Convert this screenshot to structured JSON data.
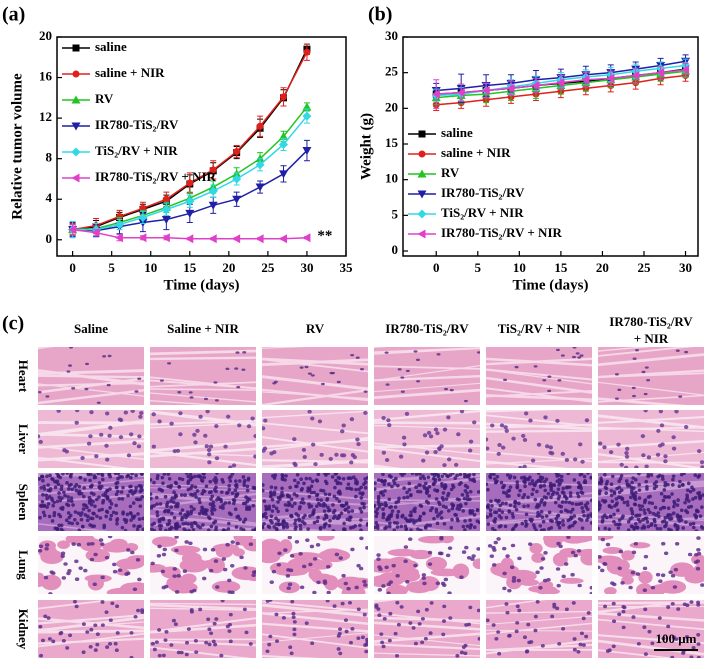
{
  "chart_data": [
    {
      "type": "line",
      "label": "(a)",
      "xlabel": "Time (days)",
      "ylabel": "Relative tumor volume",
      "x": [
        0,
        3,
        6,
        9,
        12,
        15,
        18,
        21,
        24,
        27,
        30
      ],
      "xlim": [
        -2,
        35
      ],
      "xticks": [
        0,
        5,
        10,
        15,
        20,
        25,
        30,
        35
      ],
      "ylim": [
        -1.6,
        20
      ],
      "yticks": [
        0,
        4,
        8,
        12,
        16,
        20
      ],
      "legend": "upper left",
      "series": [
        {
          "name": "saline",
          "color": "#000000",
          "marker": "square",
          "values": [
            1.0,
            1.3,
            2.2,
            3.0,
            3.8,
            5.5,
            6.8,
            8.6,
            11.0,
            14.0,
            18.8
          ],
          "errors": [
            0.5,
            0.6,
            0.5,
            0.5,
            0.6,
            0.9,
            0.8,
            0.6,
            0.9,
            0.8,
            0.5
          ]
        },
        {
          "name": "saline + NIR",
          "color": "#e0201b",
          "marker": "circle",
          "values": [
            1.0,
            1.4,
            2.3,
            3.1,
            4.0,
            5.6,
            6.9,
            8.7,
            11.2,
            14.1,
            18.5
          ],
          "errors": [
            0.6,
            0.7,
            0.6,
            0.6,
            0.7,
            1.0,
            0.9,
            0.6,
            1.0,
            0.9,
            0.8
          ]
        },
        {
          "name": "RV",
          "color": "#22c422",
          "marker": "triangle-up",
          "values": [
            1.0,
            1.1,
            1.7,
            2.4,
            3.2,
            4.1,
            5.2,
            6.5,
            8.0,
            10.2,
            13.1
          ],
          "errors": [
            0.5,
            0.5,
            0.5,
            0.5,
            0.5,
            0.6,
            0.6,
            0.6,
            0.6,
            0.5,
            0.4
          ]
        },
        {
          "name": "IR780-TiS₂/RV",
          "color": "#1f1fa8",
          "marker": "triangle-down",
          "values": [
            1.0,
            0.9,
            1.3,
            1.7,
            2.0,
            2.6,
            3.4,
            4.0,
            5.2,
            6.5,
            8.8
          ],
          "errors": [
            0.7,
            0.6,
            0.7,
            0.9,
            1.0,
            0.9,
            0.8,
            0.7,
            0.6,
            0.8,
            1.0
          ]
        },
        {
          "name": "TiS₂/RV + NIR",
          "color": "#30d8e8",
          "marker": "diamond",
          "values": [
            1.0,
            1.0,
            1.5,
            2.2,
            3.0,
            3.8,
            4.8,
            6.0,
            7.4,
            9.4,
            12.2
          ],
          "errors": [
            0.8,
            0.6,
            0.5,
            0.6,
            0.6,
            0.6,
            0.6,
            0.6,
            0.6,
            0.6,
            0.7
          ]
        },
        {
          "name": "IR780-TiS₂/RV + NIR",
          "color": "#e040c8",
          "marker": "triangle-left",
          "values": [
            1.0,
            0.7,
            0.2,
            0.2,
            0.2,
            0.1,
            0.1,
            0.1,
            0.1,
            0.1,
            0.2
          ],
          "errors": [
            0.5,
            0.3,
            0.3,
            0.2,
            0.2,
            0.1,
            0.1,
            0.1,
            0.1,
            0.1,
            0.1
          ]
        }
      ],
      "annotations": [
        {
          "text": "**",
          "x": 32.3,
          "y": 0.3
        }
      ]
    },
    {
      "type": "line",
      "label": "(b)",
      "xlabel": "Time (days)",
      "ylabel": "Weight (g)",
      "x": [
        0,
        3,
        6,
        9,
        12,
        15,
        18,
        21,
        24,
        27,
        30
      ],
      "xlim": [
        -4,
        31.5
      ],
      "xticks": [
        0,
        5,
        10,
        15,
        20,
        25,
        30
      ],
      "ylim": [
        -0.7,
        30
      ],
      "yticks": [
        0,
        5,
        10,
        15,
        20,
        25,
        30
      ],
      "legend": "lower center",
      "series": [
        {
          "name": "saline",
          "color": "#000000",
          "marker": "square",
          "values": [
            22.0,
            22.2,
            22.5,
            22.8,
            23.2,
            23.5,
            23.8,
            24.2,
            24.6,
            25.0,
            25.5
          ],
          "errors": [
            0.8,
            0.8,
            0.9,
            0.9,
            0.9,
            0.9,
            0.9,
            0.9,
            0.9,
            0.9,
            0.8
          ]
        },
        {
          "name": "saline + NIR",
          "color": "#e0201b",
          "marker": "circle",
          "values": [
            20.5,
            20.8,
            21.2,
            21.6,
            22.0,
            22.4,
            22.8,
            23.2,
            23.6,
            24.2,
            24.6
          ],
          "errors": [
            0.8,
            0.8,
            0.9,
            0.9,
            0.9,
            0.9,
            0.9,
            0.9,
            0.9,
            0.9,
            0.8
          ]
        },
        {
          "name": "RV",
          "color": "#22c422",
          "marker": "triangle-up",
          "values": [
            21.5,
            21.8,
            22.0,
            22.4,
            22.8,
            23.2,
            23.6,
            24.0,
            24.4,
            24.8,
            25.2
          ],
          "errors": [
            1.0,
            1.2,
            1.2,
            1.3,
            1.4,
            1.2,
            1.2,
            1.1,
            1.0,
            1.0,
            0.9
          ]
        },
        {
          "name": "IR780-TiS₂/RV",
          "color": "#1f1fa8",
          "marker": "triangle-down",
          "values": [
            22.5,
            22.8,
            23.2,
            23.5,
            24.0,
            24.3,
            24.7,
            25.0,
            25.5,
            26.0,
            26.6
          ],
          "errors": [
            1.0,
            2.0,
            1.5,
            1.2,
            1.3,
            1.2,
            1.2,
            1.1,
            1.0,
            1.0,
            0.9
          ]
        },
        {
          "name": "TiS₂/RV + NIR",
          "color": "#30d8e8",
          "marker": "diamond",
          "values": [
            21.8,
            22.0,
            22.5,
            23.0,
            23.5,
            24.0,
            24.4,
            24.7,
            25.2,
            25.6,
            26.0
          ],
          "errors": [
            0.9,
            0.9,
            1.0,
            1.0,
            1.0,
            1.0,
            1.0,
            1.0,
            1.0,
            0.9,
            0.9
          ]
        },
        {
          "name": "IR780-TiS₂/RV + NIR",
          "color": "#e040c8",
          "marker": "triangle-left",
          "values": [
            22.0,
            22.2,
            22.5,
            22.8,
            23.2,
            23.6,
            24.0,
            24.2,
            24.6,
            25.0,
            25.4
          ],
          "errors": [
            2.0,
            1.2,
            1.0,
            1.0,
            1.0,
            1.0,
            1.0,
            1.0,
            1.0,
            0.9,
            0.9
          ]
        }
      ]
    }
  ],
  "panel_c": {
    "label": "(c)",
    "columns": [
      [
        "Saline"
      ],
      [
        "Saline + NIR"
      ],
      [
        "RV"
      ],
      [
        "IR780-TiS₂/RV"
      ],
      [
        "TiS₂/RV + NIR"
      ],
      [
        "IR780-TiS₂/RV",
        "+ NIR"
      ]
    ],
    "rows": [
      "Heart",
      "Liver",
      "Spleen",
      "Lung",
      "Kidney"
    ],
    "scale_bar": "100 μm"
  }
}
